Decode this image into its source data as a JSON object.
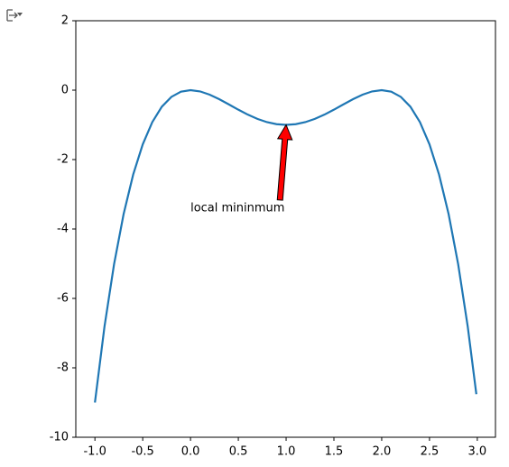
{
  "chart_data": {
    "type": "line",
    "x": [
      -1.0,
      -0.9,
      -0.8,
      -0.7,
      -0.6,
      -0.5,
      -0.4,
      -0.3,
      -0.2,
      -0.1,
      0.0,
      0.1,
      0.2,
      0.3,
      0.4,
      0.5,
      0.6,
      0.7,
      0.8,
      0.9,
      1.0,
      1.1,
      1.2,
      1.3,
      1.4,
      1.5,
      1.6,
      1.7,
      1.8,
      1.9,
      2.0,
      2.1,
      2.2,
      2.3,
      2.4,
      2.5,
      2.6,
      2.7,
      2.8,
      2.9,
      2.99
    ],
    "values": [
      -9,
      -6.8121,
      -5.0176,
      -3.5721,
      -2.4336,
      -1.5625,
      -0.9216,
      -0.4761,
      -0.1936,
      -0.0441,
      0,
      -0.0361,
      -0.1296,
      -0.2601,
      -0.4096,
      -0.5625,
      -0.7056,
      -0.8281,
      -0.9216,
      -0.9801,
      -1,
      -0.9801,
      -0.9216,
      -0.8281,
      -0.7056,
      -0.5625,
      -0.4096,
      -0.2601,
      -0.1296,
      -0.0361,
      0,
      -0.0441,
      -0.1936,
      -0.4761,
      -0.9216,
      -1.5625,
      -2.4336,
      -3.5721,
      -5.0176,
      -6.8121,
      -8.76
    ],
    "color": "#1f77b4",
    "xlim": [
      -1.2,
      3.19
    ],
    "ylim": [
      -10,
      2
    ],
    "xticks": [
      {
        "value": -1.0,
        "label": "-1.0"
      },
      {
        "value": -0.5,
        "label": "-0.5"
      },
      {
        "value": 0.0,
        "label": "0.0"
      },
      {
        "value": 0.5,
        "label": "0.5"
      },
      {
        "value": 1.0,
        "label": "1.0"
      },
      {
        "value": 1.5,
        "label": "1.5"
      },
      {
        "value": 2.0,
        "label": "2.0"
      },
      {
        "value": 2.5,
        "label": "2.5"
      },
      {
        "value": 3.0,
        "label": "3.0"
      }
    ],
    "yticks": [
      -10,
      -8,
      -6,
      -4,
      -2,
      0,
      2
    ],
    "grid": false,
    "annotation": {
      "text": "local mininmum",
      "xy": [
        1,
        -1
      ],
      "xytext": [
        0,
        -3.4
      ],
      "arrow_color": "#ff0000"
    }
  }
}
